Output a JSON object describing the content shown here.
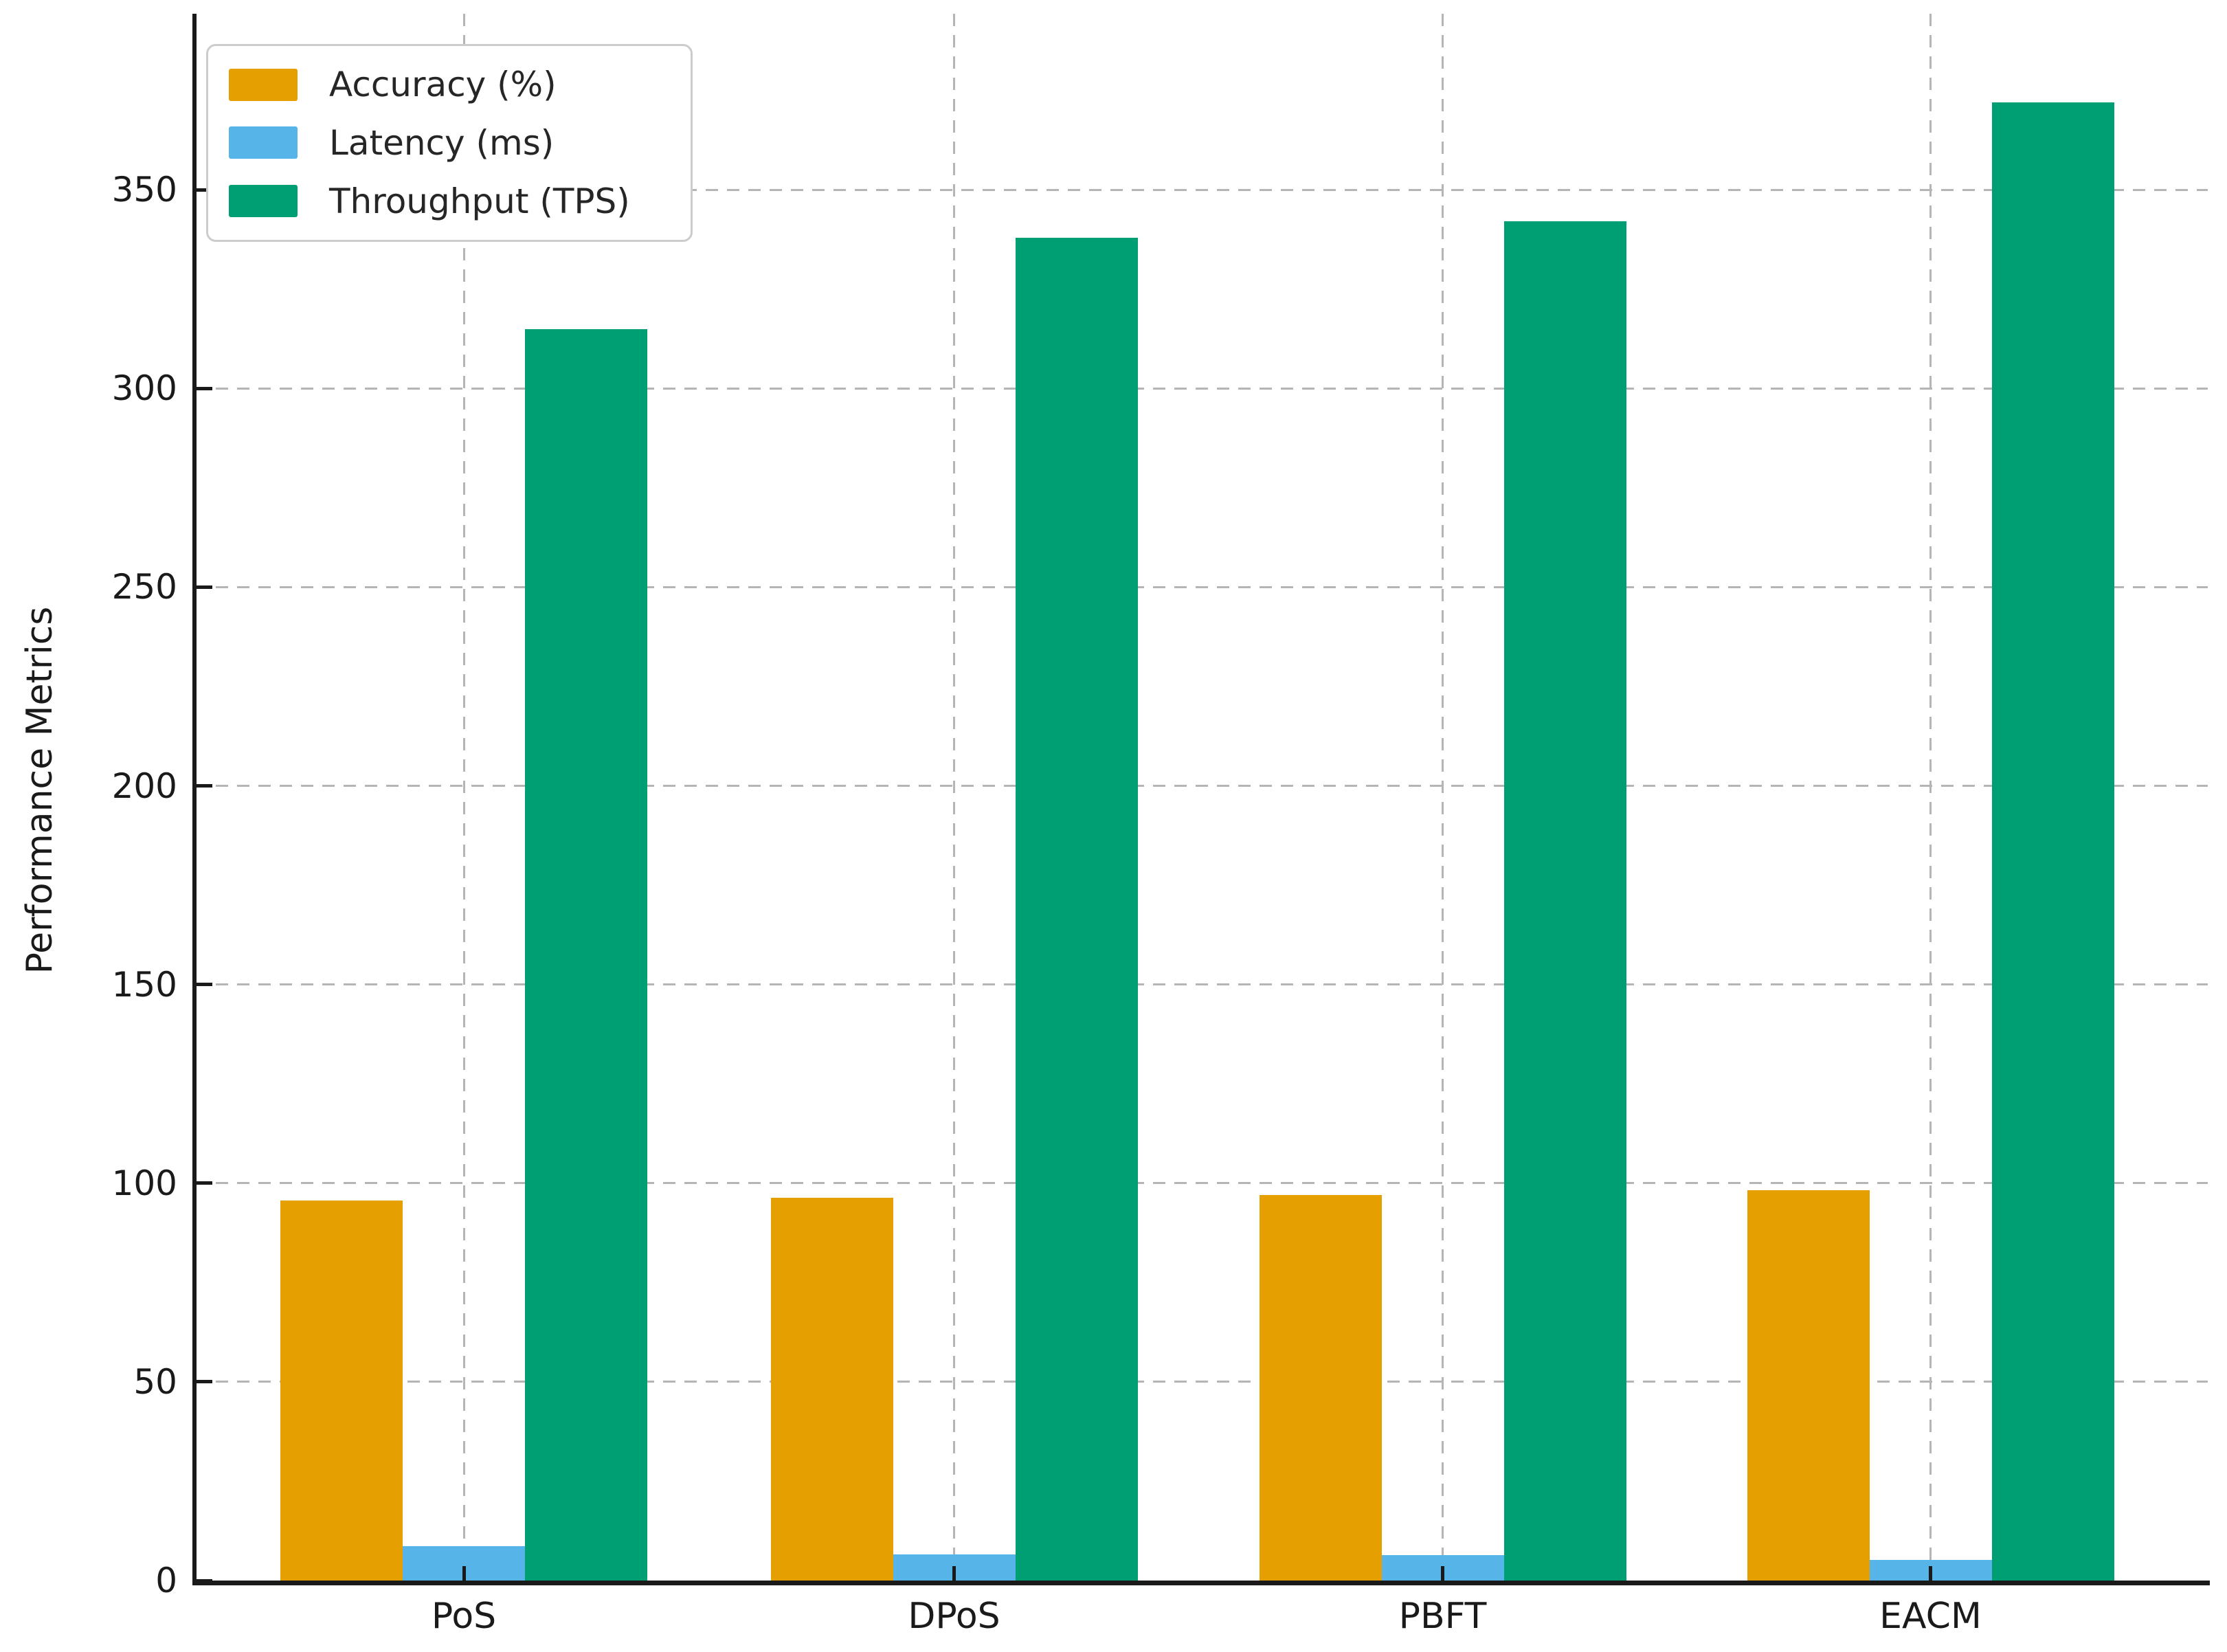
{
  "chart_data": {
    "type": "bar",
    "title": "",
    "xlabel": "",
    "ylabel": "Performance Metrics",
    "categories": [
      "PoS",
      "DPoS",
      "PBFT",
      "EACM"
    ],
    "series": [
      {
        "name": "Accuracy (%)",
        "color": "#E69F00",
        "values": [
          95.6,
          96.3,
          97.0,
          98.2
        ]
      },
      {
        "name": "Latency (ms)",
        "color": "#56B4E9",
        "values": [
          8.6,
          6.6,
          6.4,
          5.2
        ]
      },
      {
        "name": "Throughput (TPS)",
        "color": "#009E73",
        "values": [
          315,
          338,
          342,
          372
        ]
      }
    ],
    "yticks": [
      0,
      50,
      100,
      150,
      200,
      250,
      300,
      350
    ],
    "ylim": [
      0,
      394.3
    ],
    "grid": "dashed gray, horizontal and vertical",
    "legend_position": "upper left",
    "colors": {
      "spine": "#1a1a1a",
      "grid": "#b5b5b5",
      "text": "#1a1a1a",
      "background": "#ffffff"
    }
  }
}
